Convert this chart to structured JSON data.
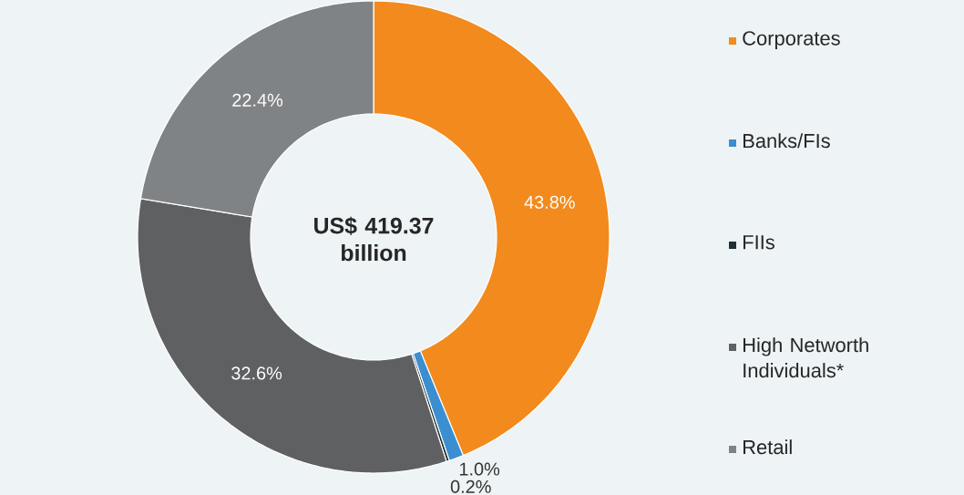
{
  "chart_data": {
    "type": "donut",
    "categories": [
      "Corporates",
      "Banks/FIs",
      "FIIs",
      "High Networth Individuals*",
      "Retail"
    ],
    "values": [
      43.8,
      1.0,
      0.2,
      32.6,
      22.4
    ],
    "colors": [
      "#f28a1e",
      "#3b8fd0",
      "#1f2f33",
      "#5f6062",
      "#808385"
    ],
    "value_labels": [
      "43.8%",
      "1.0%",
      "0.2%",
      "32.6%",
      "22.4%"
    ],
    "legend": "right",
    "annotations": [
      "US$ 419.37 billion"
    ]
  }
}
